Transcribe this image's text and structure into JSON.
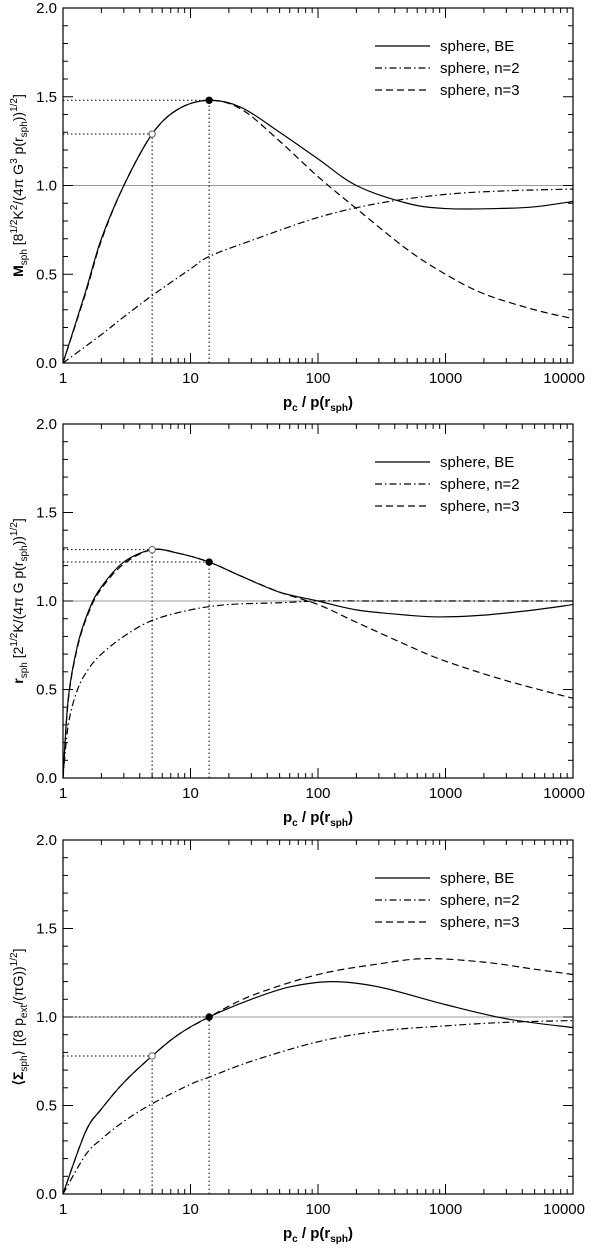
{
  "chart_data": [
    {
      "type": "line",
      "xscale": "log",
      "xlim": [
        1,
        10000
      ],
      "ylim": [
        0,
        2
      ],
      "xticks": [
        "1",
        "10",
        "100",
        "1000",
        "10000"
      ],
      "yticks": [
        "0.0",
        "0.5",
        "1.0",
        "1.5",
        "2.0"
      ],
      "xlabel": "p_c / p(r_sph)",
      "xlabel_parts": {
        "a": "p",
        "a_sub": "c",
        "b": " / p(r",
        "b_sub": "sph",
        "c": ")"
      },
      "ylabel_parts": {
        "a": "M",
        "a_sub": "sph",
        "b": " [8",
        "b_sup": "1/2",
        "c": "K",
        "c_sup": "2",
        "d": "/(4π G",
        "d_sup": "3",
        "e": " p(r",
        "e_sub": "sph",
        "f": "))",
        "f_sup": "1/2",
        "g": "]"
      },
      "ref_line": 1.0,
      "markers": [
        {
          "x": 5,
          "y": 1.29,
          "filled": false
        },
        {
          "x": 14,
          "y": 1.48,
          "filled": true
        }
      ],
      "series": [
        {
          "name": "sphere, BE",
          "style": "solid",
          "x": [
            1,
            1.5,
            2,
            3,
            5,
            8,
            14,
            25,
            50,
            100,
            200,
            500,
            1000,
            2500,
            5000,
            10000
          ],
          "y": [
            0,
            0.4,
            0.7,
            1.0,
            1.29,
            1.43,
            1.48,
            1.44,
            1.3,
            1.15,
            1.0,
            0.9,
            0.87,
            0.87,
            0.88,
            0.91
          ]
        },
        {
          "name": "sphere, n=2",
          "style": "dashdot",
          "x": [
            1,
            2,
            3,
            5,
            10,
            14,
            30,
            100,
            300,
            1000,
            3000,
            10000
          ],
          "y": [
            0,
            0.16,
            0.26,
            0.38,
            0.53,
            0.6,
            0.69,
            0.82,
            0.9,
            0.95,
            0.97,
            0.98
          ]
        },
        {
          "name": "sphere, n=3",
          "style": "dashed",
          "x": [
            1,
            1.5,
            2,
            3,
            5,
            8,
            14,
            25,
            50,
            100,
            200,
            500,
            1000,
            2000,
            5000,
            10000
          ],
          "y": [
            0,
            0.39,
            0.69,
            1.0,
            1.29,
            1.43,
            1.48,
            1.43,
            1.25,
            1.05,
            0.87,
            0.64,
            0.5,
            0.39,
            0.3,
            0.25
          ]
        }
      ]
    },
    {
      "type": "line",
      "xscale": "log",
      "xlim": [
        1,
        10000
      ],
      "ylim": [
        0,
        2
      ],
      "xticks": [
        "1",
        "10",
        "100",
        "1000",
        "10000"
      ],
      "yticks": [
        "0.0",
        "0.5",
        "1.0",
        "1.5",
        "2.0"
      ],
      "xlabel": "p_c / p(r_sph)",
      "xlabel_parts": {
        "a": "p",
        "a_sub": "c",
        "b": " / p(r",
        "b_sub": "sph",
        "c": ")"
      },
      "ylabel_parts": {
        "a": "r",
        "a_sub": "sph",
        "b": " [2",
        "b_sup": "1/2",
        "c": "K/(4π G p(r",
        "c_sub": "sph",
        "d": "))",
        "d_sup": "1/2",
        "e": "]"
      },
      "ref_line": 1.0,
      "markers": [
        {
          "x": 5,
          "y": 1.29,
          "filled": false
        },
        {
          "x": 14,
          "y": 1.22,
          "filled": true
        }
      ],
      "series": [
        {
          "name": "sphere, BE",
          "style": "solid",
          "x": [
            1,
            1.1,
            1.3,
            1.6,
            2,
            3,
            5,
            8,
            14,
            25,
            50,
            100,
            200,
            500,
            900,
            2000,
            5000,
            10000
          ],
          "y": [
            0,
            0.45,
            0.75,
            0.95,
            1.08,
            1.22,
            1.29,
            1.27,
            1.22,
            1.14,
            1.05,
            1.0,
            0.95,
            0.92,
            0.91,
            0.92,
            0.95,
            0.98
          ]
        },
        {
          "name": "sphere, n=2",
          "style": "dashdot",
          "x": [
            1,
            1.1,
            1.3,
            1.6,
            2,
            3,
            5,
            10,
            20,
            50,
            100,
            300,
            1000,
            10000
          ],
          "y": [
            0,
            0.3,
            0.5,
            0.62,
            0.7,
            0.8,
            0.89,
            0.95,
            0.98,
            0.99,
            1.0,
            1.0,
            1.0,
            1.0
          ]
        },
        {
          "name": "sphere, n=3",
          "style": "dashed",
          "x": [
            1,
            1.1,
            1.3,
            1.6,
            2,
            3,
            5,
            8,
            14,
            25,
            50,
            100,
            200,
            500,
            1000,
            3000,
            10000
          ],
          "y": [
            0,
            0.44,
            0.74,
            0.94,
            1.07,
            1.21,
            1.29,
            1.27,
            1.22,
            1.14,
            1.05,
            0.98,
            0.88,
            0.75,
            0.66,
            0.55,
            0.45
          ]
        }
      ]
    },
    {
      "type": "line",
      "xscale": "log",
      "xlim": [
        1,
        10000
      ],
      "ylim": [
        0,
        2
      ],
      "xticks": [
        "1",
        "10",
        "100",
        "1000",
        "10000"
      ],
      "yticks": [
        "0.0",
        "0.5",
        "1.0",
        "1.5",
        "2.0"
      ],
      "xlabel": "p_c / p(r_sph)",
      "xlabel_parts": {
        "a": "p",
        "a_sub": "c",
        "b": " / p(r",
        "b_sub": "sph",
        "c": ")"
      },
      "ylabel_parts": {
        "a": "⟨Σ",
        "a_sub": "sph",
        "b": "⟩ [(8 p",
        "b_sub": "ext",
        "c": "/(πG))",
        "c_sup": "1/2",
        "d": "]"
      },
      "ref_line": 1.0,
      "markers": [
        {
          "x": 5,
          "y": 0.78,
          "filled": false
        },
        {
          "x": 14,
          "y": 1.0,
          "filled": true
        }
      ],
      "series": [
        {
          "name": "sphere, BE",
          "style": "solid",
          "x": [
            1,
            1.5,
            2,
            3,
            5,
            8,
            14,
            30,
            60,
            130,
            300,
            1000,
            3000,
            10000
          ],
          "y": [
            0,
            0.35,
            0.48,
            0.63,
            0.78,
            0.9,
            1.0,
            1.1,
            1.17,
            1.2,
            1.17,
            1.07,
            0.99,
            0.94
          ]
        },
        {
          "name": "sphere, n=2",
          "style": "dashdot",
          "x": [
            1,
            1.5,
            2,
            3,
            5,
            10,
            14,
            30,
            100,
            300,
            1000,
            3000,
            10000
          ],
          "y": [
            0,
            0.22,
            0.31,
            0.41,
            0.51,
            0.62,
            0.66,
            0.75,
            0.86,
            0.92,
            0.95,
            0.97,
            0.98
          ]
        },
        {
          "name": "sphere, n=3",
          "style": "dashed",
          "x": [
            1,
            1.5,
            2,
            3,
            5,
            8,
            14,
            30,
            100,
            300,
            700,
            2000,
            5000,
            10000
          ],
          "y": [
            0,
            0.35,
            0.48,
            0.63,
            0.78,
            0.9,
            1.0,
            1.12,
            1.24,
            1.3,
            1.33,
            1.31,
            1.27,
            1.24
          ]
        }
      ]
    }
  ]
}
